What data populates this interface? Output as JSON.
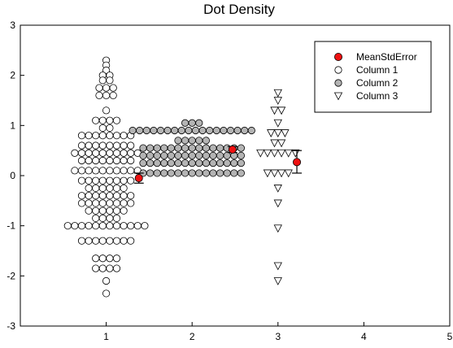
{
  "chart_data": {
    "type": "scatter",
    "subtype": "dot-density",
    "title": "Dot Density",
    "xlabel": "",
    "ylabel": "",
    "xlim": [
      0,
      5
    ],
    "ylim": [
      -3,
      3
    ],
    "x_ticks": [
      "1",
      "2",
      "3",
      "4",
      "5"
    ],
    "y_ticks": [
      "-3",
      "-2",
      "-1",
      "0",
      "1",
      "2",
      "3"
    ],
    "grid": false,
    "legend_position": "top-right",
    "legend": [
      {
        "label": "MeanStdError",
        "marker": "filled-circle",
        "color": "#ee1111"
      },
      {
        "label": "Column 1",
        "marker": "open-circle",
        "color": "#ffffff"
      },
      {
        "label": "Column 2",
        "marker": "gray-circle",
        "color": "#b4b4b4"
      },
      {
        "label": "Column 3",
        "marker": "open-triangle-down",
        "color": "#ffffff"
      }
    ],
    "series": [
      {
        "name": "Column 1",
        "x_position": 1,
        "values": [
          2.3,
          2.2,
          2.1,
          2.0,
          2.0,
          1.9,
          1.9,
          1.75,
          1.75,
          1.75,
          1.6,
          1.6,
          1.6,
          1.3,
          1.1,
          1.1,
          1.1,
          1.1,
          0.95,
          0.95,
          0.8,
          0.8,
          0.8,
          0.8,
          0.8,
          0.8,
          0.8,
          0.8,
          0.6,
          0.6,
          0.6,
          0.6,
          0.6,
          0.6,
          0.6,
          0.6,
          0.45,
          0.45,
          0.45,
          0.45,
          0.45,
          0.45,
          0.45,
          0.45,
          0.45,
          0.45,
          0.3,
          0.3,
          0.3,
          0.3,
          0.3,
          0.3,
          0.3,
          0.3,
          0.1,
          0.1,
          0.1,
          0.1,
          0.1,
          0.1,
          0.1,
          0.1,
          0.1,
          0.1,
          -0.1,
          -0.1,
          -0.1,
          -0.1,
          -0.1,
          -0.1,
          -0.1,
          -0.1,
          -0.25,
          -0.25,
          -0.25,
          -0.25,
          -0.25,
          -0.25,
          -0.4,
          -0.4,
          -0.4,
          -0.4,
          -0.4,
          -0.4,
          -0.4,
          -0.4,
          -0.55,
          -0.55,
          -0.55,
          -0.55,
          -0.55,
          -0.55,
          -0.55,
          -0.55,
          -0.7,
          -0.7,
          -0.7,
          -0.7,
          -0.7,
          -0.7,
          -0.85,
          -0.85,
          -0.85,
          -0.85,
          -1.0,
          -1.0,
          -1.0,
          -1.0,
          -1.0,
          -1.0,
          -1.0,
          -1.0,
          -1.0,
          -1.0,
          -1.0,
          -1.0,
          -1.3,
          -1.3,
          -1.3,
          -1.3,
          -1.3,
          -1.3,
          -1.3,
          -1.3,
          -1.65,
          -1.65,
          -1.65,
          -1.65,
          -1.85,
          -1.85,
          -1.85,
          -1.85,
          -2.1,
          -2.35
        ]
      },
      {
        "name": "Column 2",
        "x_position": 2,
        "values": [
          1.05,
          1.05,
          1.05,
          0.9,
          0.9,
          0.9,
          0.9,
          0.9,
          0.9,
          0.9,
          0.9,
          0.9,
          0.9,
          0.9,
          0.9,
          0.9,
          0.9,
          0.9,
          0.9,
          0.9,
          0.9,
          0.7,
          0.7,
          0.7,
          0.7,
          0.7,
          0.55,
          0.55,
          0.55,
          0.55,
          0.55,
          0.55,
          0.55,
          0.55,
          0.55,
          0.55,
          0.55,
          0.55,
          0.55,
          0.55,
          0.55,
          0.4,
          0.4,
          0.4,
          0.4,
          0.4,
          0.4,
          0.4,
          0.4,
          0.4,
          0.4,
          0.4,
          0.4,
          0.4,
          0.4,
          0.4,
          0.25,
          0.25,
          0.25,
          0.25,
          0.25,
          0.25,
          0.25,
          0.25,
          0.25,
          0.25,
          0.25,
          0.25,
          0.25,
          0.25,
          0.25,
          0.05,
          0.05,
          0.05,
          0.05,
          0.05,
          0.05,
          0.05,
          0.05,
          0.05,
          0.05,
          0.05,
          0.05,
          0.05,
          0.05,
          0.05
        ]
      },
      {
        "name": "Column 3",
        "x_position": 3,
        "values": [
          1.65,
          1.5,
          1.3,
          1.3,
          1.05,
          0.85,
          0.85,
          0.85,
          0.65,
          0.65,
          0.45,
          0.45,
          0.45,
          0.45,
          0.45,
          0.45,
          0.05,
          0.05,
          0.05,
          0.05,
          -0.25,
          -0.55,
          -1.05,
          -1.8,
          -2.1
        ]
      }
    ],
    "mean_std_error": [
      {
        "x": 1.38,
        "mean": -0.05,
        "lower": -0.15,
        "upper": 0.05
      },
      {
        "x": 2.47,
        "mean": 0.52,
        "lower": 0.46,
        "upper": 0.58
      },
      {
        "x": 3.22,
        "mean": 0.27,
        "lower": 0.05,
        "upper": 0.5
      }
    ]
  }
}
